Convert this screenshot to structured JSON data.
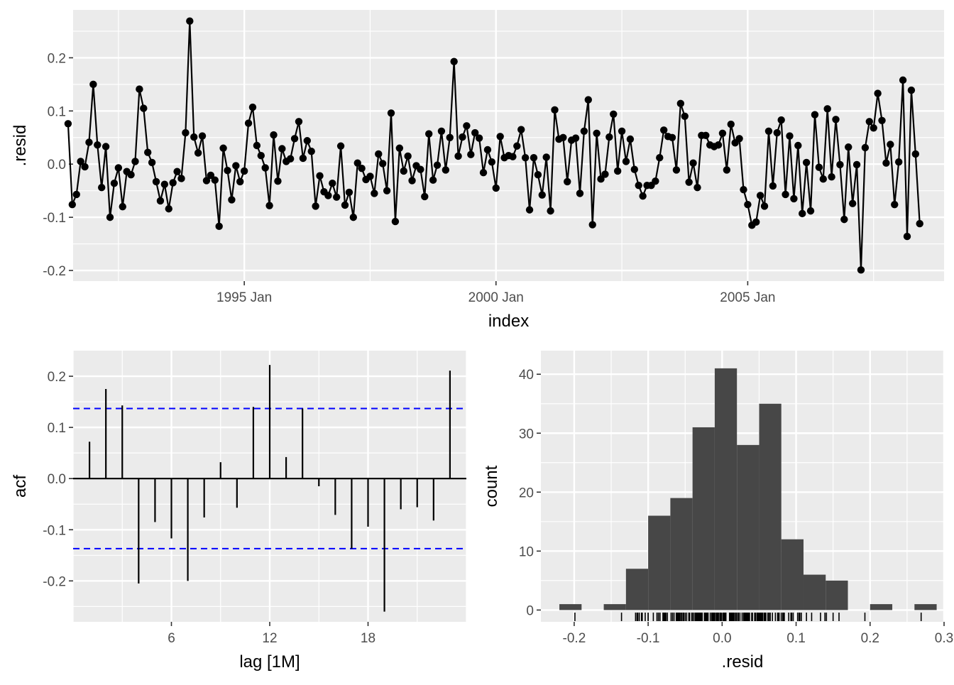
{
  "chart_data": [
    {
      "type": "line",
      "xlabel": "index",
      "ylabel": ".resid",
      "xlim": [
        1991.6,
        2008.9
      ],
      "ylim": [
        -0.22,
        0.29
      ],
      "x_major_ticks": [
        1995,
        2000,
        2005
      ],
      "x_tick_labels": [
        "1995 Jan",
        "2000 Jan",
        "2005 Jan"
      ],
      "y_ticks": [
        -0.2,
        -0.1,
        0.0,
        0.1,
        0.2
      ],
      "y_tick_labels": [
        "-0.2",
        "-0.1",
        "0.0",
        "0.1",
        "0.2"
      ],
      "grid": true,
      "x_start": "1991 Jul",
      "x_frequency": "monthly",
      "series": [
        {
          "values": [
            0.076,
            -0.076,
            -0.057,
            0.005,
            -0.005,
            0.041,
            0.15,
            0.036,
            -0.044,
            0.033,
            -0.1,
            -0.036,
            -0.007,
            -0.08,
            -0.014,
            -0.02,
            0.005,
            0.141,
            0.105,
            0.022,
            0.003,
            -0.033,
            -0.069,
            -0.038,
            -0.084,
            -0.035,
            -0.014,
            -0.027,
            0.059,
            0.269,
            0.051,
            0.021,
            0.053,
            -0.031,
            -0.021,
            -0.03,
            -0.117,
            0.03,
            -0.012,
            -0.067,
            -0.003,
            -0.033,
            -0.013,
            0.077,
            0.107,
            0.035,
            0.016,
            -0.007,
            -0.078,
            0.055,
            -0.032,
            0.029,
            0.005,
            0.01,
            0.048,
            0.08,
            0.011,
            0.044,
            0.024,
            -0.079,
            -0.022,
            -0.052,
            -0.059,
            -0.036,
            -0.062,
            0.034,
            -0.077,
            -0.053,
            -0.1,
            0.002,
            -0.008,
            -0.029,
            -0.023,
            -0.055,
            0.019,
            0.001,
            -0.05,
            0.096,
            -0.108,
            0.03,
            -0.013,
            0.015,
            -0.031,
            -0.003,
            -0.01,
            -0.061,
            0.057,
            -0.03,
            -0.002,
            0.062,
            -0.011,
            0.05,
            0.193,
            0.015,
            0.051,
            0.072,
            0.018,
            0.059,
            0.049,
            -0.016,
            0.027,
            0.004,
            -0.045,
            0.052,
            0.012,
            0.016,
            0.014,
            0.034,
            0.065,
            0.012,
            -0.086,
            0.012,
            -0.02,
            -0.058,
            0.013,
            -0.088,
            0.102,
            0.047,
            0.05,
            -0.033,
            0.045,
            0.049,
            -0.055,
            0.062,
            0.121,
            -0.114,
            0.058,
            -0.028,
            -0.019,
            0.051,
            0.094,
            -0.013,
            0.062,
            0.005,
            0.047,
            -0.01,
            -0.04,
            -0.06,
            -0.04,
            -0.04,
            -0.032,
            0.012,
            0.064,
            0.052,
            0.05,
            -0.011,
            0.114,
            0.09,
            -0.034,
            0.002,
            -0.044,
            0.054,
            0.054,
            0.036,
            0.033,
            0.036,
            0.058,
            -0.011,
            0.075,
            0.04,
            0.048,
            -0.048,
            -0.076,
            -0.115,
            -0.109,
            -0.059,
            -0.079,
            0.062,
            -0.041,
            0.059,
            0.083,
            -0.057,
            0.053,
            -0.065,
            0.035,
            -0.093,
            0.003,
            -0.088,
            0.093,
            -0.006,
            -0.028,
            0.104,
            -0.024,
            0.084,
            -0.001,
            -0.104,
            0.032,
            -0.074,
            -0.001,
            -0.199,
            0.031,
            0.08,
            0.068,
            0.133,
            0.082,
            0.002,
            0.037,
            -0.076,
            0.004,
            0.158,
            -0.136,
            0.139,
            0.019,
            -0.112
          ]
        }
      ]
    },
    {
      "type": "bar",
      "xlabel": "lag [1M]",
      "ylabel": "acf",
      "xlim": [
        0,
        24
      ],
      "ylim": [
        -0.28,
        0.25
      ],
      "x_ticks": [
        6,
        12,
        18
      ],
      "x_tick_labels": [
        "6",
        "12",
        "18"
      ],
      "y_ticks": [
        -0.2,
        -0.1,
        0.0,
        0.1,
        0.2
      ],
      "y_tick_labels": [
        "-0.2",
        "-0.1",
        "0.0",
        "0.1",
        "0.2"
      ],
      "grid": true,
      "lags": [
        1,
        2,
        3,
        4,
        5,
        6,
        7,
        8,
        9,
        10,
        11,
        12,
        13,
        14,
        15,
        16,
        17,
        18,
        19,
        20,
        21,
        22,
        23
      ],
      "values": [
        0.072,
        0.175,
        0.143,
        -0.205,
        -0.085,
        -0.117,
        -0.2,
        -0.076,
        0.032,
        -0.057,
        0.14,
        0.222,
        0.042,
        0.137,
        -0.015,
        -0.071,
        -0.137,
        -0.094,
        -0.26,
        -0.06,
        -0.056,
        -0.082,
        0.211
      ],
      "confidence_bounds": [
        0.137,
        -0.137
      ],
      "bound_color": "#0000ff"
    },
    {
      "type": "bar",
      "subtype": "histogram",
      "xlabel": ".resid",
      "ylabel": "count",
      "xlim": [
        -0.245,
        0.3
      ],
      "ylim": [
        -2,
        44
      ],
      "x_ticks": [
        -0.2,
        -0.1,
        0.0,
        0.1,
        0.2,
        0.3
      ],
      "x_tick_labels": [
        "-0.2",
        "-0.1",
        "0.0",
        "0.1",
        "0.2",
        "0.3"
      ],
      "y_ticks": [
        0,
        10,
        20,
        30,
        40
      ],
      "y_tick_labels": [
        "0",
        "10",
        "20",
        "30",
        "40"
      ],
      "grid": true,
      "bin_width": 0.03,
      "bin_starts": [
        -0.22,
        -0.19,
        -0.16,
        -0.13,
        -0.1,
        -0.07,
        -0.04,
        -0.01,
        0.02,
        0.05,
        0.08,
        0.11,
        0.14,
        0.17,
        0.2,
        0.23,
        0.26
      ],
      "counts": [
        1,
        0,
        1,
        7,
        16,
        19,
        31,
        41,
        28,
        35,
        12,
        6,
        5,
        0,
        1,
        0,
        1
      ],
      "bar_color": "#474747",
      "rug": true
    }
  ],
  "colors": {
    "panel_background": "#ebebeb",
    "grid": "#ffffff",
    "line": "#000000",
    "ci_line": "#0000ff",
    "bar": "#474747"
  }
}
